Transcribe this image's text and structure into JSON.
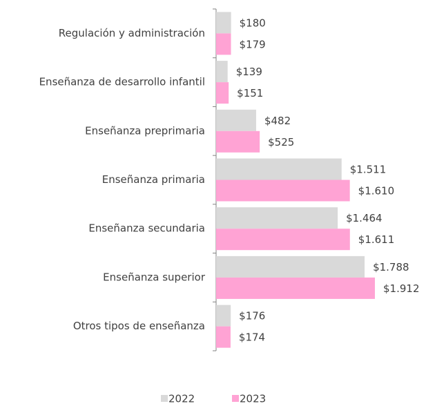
{
  "chart_data": {
    "type": "bar",
    "orientation": "horizontal",
    "categories": [
      "Regulación y administración",
      "Enseñanza de desarrollo infantil",
      "Enseñanza preprimaria",
      "Enseñanza primaria",
      "Enseñanza secundaria",
      "Enseñanza superior",
      "Otros tipos de enseñanza"
    ],
    "series": [
      {
        "name": "2022",
        "color": "#d9d9d9",
        "values": [
          180,
          139,
          482,
          1511,
          1464,
          1788,
          176
        ],
        "value_labels": [
          "$180",
          "$139",
          "$482",
          "$1.511",
          "$1.464",
          "$1.788",
          "$176"
        ]
      },
      {
        "name": "2023",
        "color": "#ffa3d4",
        "values": [
          179,
          151,
          525,
          1610,
          1611,
          1912,
          174
        ],
        "value_labels": [
          "$179",
          "$151",
          "$525",
          "$1.610",
          "$1.611",
          "$1.912",
          "$174"
        ]
      }
    ],
    "legend": "bottom"
  }
}
